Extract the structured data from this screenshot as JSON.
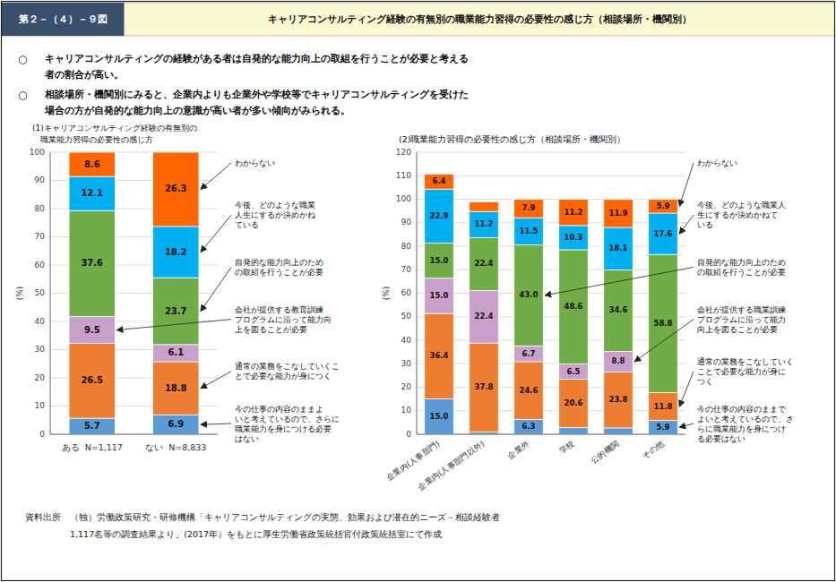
{
  "figure_number": "第２－（４）－９図",
  "title": "キャリアコンサルティング経験の有無別の職業能力習得の必要性の感じ方（相談場所・機関別）",
  "bullet": "○",
  "summary": [
    [
      "キャリアコンサルティングの経験がある者は自発的な能力向上の取組を行うことが必要と考える",
      "者の割合が高い。"
    ],
    [
      "相談場所・機関別にみると、企業内よりも企業外や学校等でキャリアコンサルティングを受けた",
      "場合の方が自発的な能力向上の意識が高い者が多い傾向がみられる。"
    ]
  ],
  "footnotes": [
    "資料出所　（独）労働政策研究・研修機構「キャリアコンサルティングの実態、効果および潜在的ニーズ－相談経験者",
    "　　　　　1,117名等の調査結果より」(2017年）をもとに厚生労働省政策統括官付政策統括室にて作成"
  ],
  "chart_data": [
    {
      "type": "bar",
      "stacked": true,
      "title": "(1)キャリアコンサルティング経験の有無別の\n　職業能力習得の必要性の感じ方",
      "y_label": "(%)",
      "categories": [
        "ある  N=1,117",
        "ない  N=8,833"
      ],
      "ylim": [
        0,
        100
      ],
      "yticks": [
        0,
        10,
        20,
        30,
        40,
        50,
        60,
        70,
        80,
        90,
        100
      ],
      "grid": true,
      "data_labels": true,
      "series": [
        {
          "name": "今の仕事の内容のままよ\nいと考えているので、さらに\n職業能力を身につける必要\nはない",
          "color": "#5B9BD5",
          "values": [
            5.7,
            6.9
          ],
          "label_category": "ない  N=8,833"
        },
        {
          "name": "通常の業務をこなしていくこ\nとで必要な能力が身につく",
          "color": "#ED7D31",
          "values": [
            26.5,
            18.8
          ],
          "label_category": "ない  N=8,833"
        },
        {
          "name": "会社が提供する教育訓練\nプログラムに沿って能力向\n上を図ることが必要",
          "color": "#C9A0C9",
          "values": [
            9.5,
            6.1
          ],
          "label_category": "ある  N=1,117"
        },
        {
          "name": "自発的な能力向上のため\nの取組を行うことが必要",
          "color": "#70AD47",
          "values": [
            37.6,
            23.7
          ],
          "label_category": "ない  N=8,833"
        },
        {
          "name": "今後、どのような職業\n人生にするか決めかね\nている",
          "color": "#00B0F0",
          "values": [
            12.1,
            18.2
          ],
          "label_category": "ない  N=8,833"
        },
        {
          "name": "わからない",
          "color": "#FF6600",
          "values": [
            8.6,
            26.3
          ],
          "label_category": "ない  N=8,833"
        }
      ]
    },
    {
      "type": "bar",
      "stacked": true,
      "title": "(2)職業能力習得の必要性の感じ方（相談場所・機関別）",
      "y_label": "(%)",
      "categories": [
        "企業内(人事部門)",
        "企業内(人事部門以外)",
        "企業外",
        "学校",
        "公的機関",
        "その他"
      ],
      "ylim": [
        0,
        120
      ],
      "yticks": [
        0,
        10,
        20,
        30,
        40,
        50,
        60,
        70,
        80,
        90,
        100,
        110,
        120
      ],
      "grid": true,
      "data_labels": true,
      "series": [
        {
          "name": "今の仕事の内容のままで\nよいと考えているので、さ\nらに職業能力を身につけ\nる必要はない",
          "color": "#5B9BD5",
          "values": [
            15.0,
            1.0,
            6.3,
            2.8,
            2.7,
            5.9
          ],
          "value_labels": [
            "15.0",
            null,
            "6.3",
            null,
            null,
            "5.9"
          ],
          "label_category": "その他"
        },
        {
          "name": "通常の業務をこなしていく\nことで必要な能力が身に\nつく",
          "color": "#ED7D31",
          "values": [
            36.4,
            37.8,
            24.6,
            20.6,
            23.8,
            11.8
          ],
          "value_labels": [
            "36.4",
            "37.8",
            "24.6",
            "20.6",
            "23.8",
            "11.8"
          ],
          "label_category": "その他"
        },
        {
          "name": "会社が提供する職業訓練\nプログラムに沿って能力\n向上を図ることが必要",
          "color": "#C9A0C9",
          "values": [
            15.0,
            22.4,
            6.7,
            6.5,
            8.8,
            0.0
          ],
          "value_labels": [
            "15.0",
            "22.4",
            "6.7",
            "6.5",
            "8.8",
            null
          ],
          "label_category": "公的機関"
        },
        {
          "name": "自発的な能力向上のため\nの取組を行うことが必要",
          "color": "#70AD47",
          "values": [
            15.0,
            22.4,
            43.0,
            48.6,
            34.6,
            58.8
          ],
          "value_labels": [
            "15.0",
            "22.4",
            "43.0",
            "48.6",
            "34.6",
            "58.8"
          ],
          "label_category": "企業外"
        },
        {
          "name": "今後、どのような職業人\n生にするか決めかねて\nいる",
          "color": "#00B0F0",
          "values": [
            22.9,
            11.2,
            11.5,
            10.3,
            18.1,
            17.6
          ],
          "value_labels": [
            "22.9",
            "11.2",
            "11.5",
            "10.3",
            "18.1",
            "17.6"
          ],
          "label_category": "その他"
        },
        {
          "name": "わからない",
          "color": "#FF6600",
          "values": [
            6.4,
            4.1,
            7.9,
            11.2,
            11.9,
            5.9
          ],
          "value_labels": [
            "6.4",
            null,
            "7.9",
            "11.2",
            "11.9",
            "5.9"
          ],
          "label_category": "その他"
        }
      ]
    }
  ]
}
